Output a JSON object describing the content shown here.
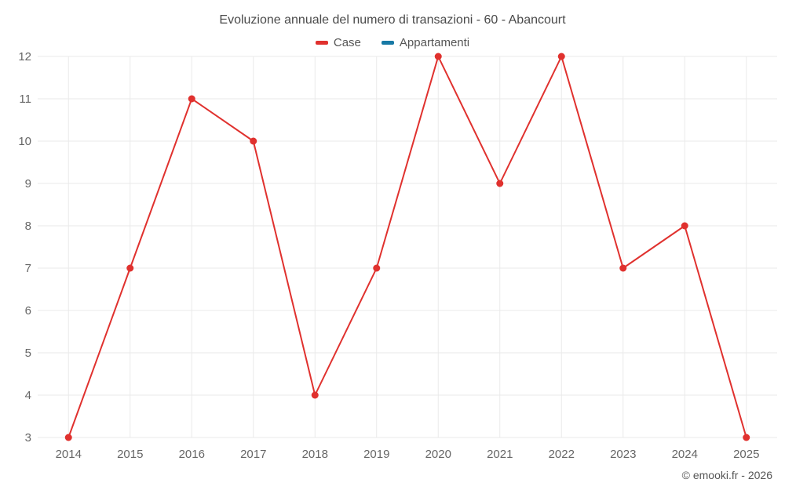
{
  "title": "Evoluzione annuale del numero di transazioni - 60 - Abancourt",
  "legend": {
    "items": [
      {
        "label": "Case",
        "color": "#e0312e"
      },
      {
        "label": "Appartamenti",
        "color": "#1779a5"
      }
    ]
  },
  "footer": {
    "copyright": "© emooki.fr - 2026"
  },
  "colors": {
    "grid": "#eaeaea",
    "tick_label": "#666666",
    "title": "#4a4a4a"
  },
  "chart_data": {
    "type": "line",
    "title": "Evoluzione annuale del numero di transazioni - 60 - Abancourt",
    "categories": [
      "2014",
      "2015",
      "2016",
      "2017",
      "2018",
      "2019",
      "2020",
      "2021",
      "2022",
      "2023",
      "2024",
      "2025"
    ],
    "series": [
      {
        "name": "Case",
        "color": "#e0312e",
        "values": [
          3,
          7,
          11,
          10,
          4,
          7,
          12,
          9,
          12,
          7,
          8,
          3
        ]
      },
      {
        "name": "Appartamenti",
        "color": "#1779a5",
        "values": []
      }
    ],
    "xlabel": "",
    "ylabel": "",
    "ylim": [
      3,
      12
    ],
    "y_ticks": [
      3,
      4,
      5,
      6,
      7,
      8,
      9,
      10,
      11,
      12
    ],
    "grid": true,
    "legend_position": "top"
  }
}
